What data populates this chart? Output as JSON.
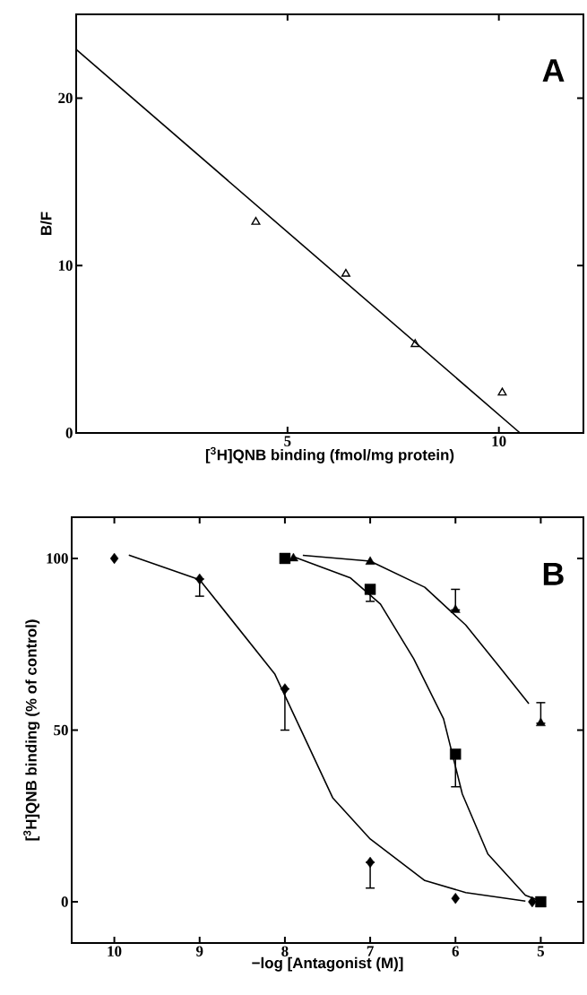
{
  "chart_data": [
    {
      "type": "scatter",
      "xlabel": "[$^{3}$H]QNB binding  (fmol/mg protein)",
      "ylabel": "B/F",
      "annotations": [
        "A"
      ],
      "marker": "triangle",
      "xlim": [
        0,
        12
      ],
      "ylim": [
        0,
        25
      ],
      "xticks": [
        5,
        10
      ],
      "yticks": [
        0,
        10,
        20
      ],
      "series": [
        {
          "color": "#000000",
          "x": [
            4.25,
            6.38,
            8.02,
            10.08
          ],
          "values": [
            12.6,
            9.5,
            5.3,
            2.4
          ]
        },
        {
          "type": "line",
          "marker": "none",
          "color": "#000000",
          "x": [
            0,
            10.5
          ],
          "values": [
            22.9,
            0
          ]
        }
      ]
    },
    {
      "type": "scatter",
      "xlabel": "−log [Antagonist (M)]",
      "ylabel": "[$^{3}$H]QNB binding (% of control)",
      "annotations": [
        "B"
      ],
      "xlim": [
        10.5,
        4.5
      ],
      "ylim": [
        -12,
        112
      ],
      "xticks": [
        10,
        9,
        8,
        7,
        6,
        5
      ],
      "yticks": [
        0,
        50,
        100
      ],
      "series": [
        {
          "marker": "diamond",
          "color": "#000000",
          "x": [
            10,
            9,
            8,
            7,
            6,
            5.1
          ],
          "values": [
            100,
            94,
            62,
            11.5,
            1,
            0
          ],
          "errors": [
            null,
            [
              89,
              94
            ],
            [
              50,
              62
            ],
            [
              4,
              11.5
            ],
            null,
            null
          ]
        },
        {
          "marker": "square",
          "color": "#000000",
          "x": [
            8,
            7,
            6,
            5
          ],
          "values": [
            100,
            91,
            43,
            0
          ],
          "errors": [
            null,
            [
              87.5,
              91
            ],
            [
              33.5,
              43
            ],
            null
          ]
        },
        {
          "marker": "triangle",
          "color": "#000000",
          "x": [
            7.9,
            7,
            6,
            5
          ],
          "values": [
            100,
            99,
            85,
            52
          ],
          "errors": [
            null,
            null,
            [
              85,
              91
            ],
            [
              52,
              58
            ]
          ]
        },
        {
          "type": "line",
          "marker": "none",
          "color": "#000000",
          "x": [
            9.83,
            9.0,
            8.12,
            7.79,
            7.44,
            7.0,
            6.36,
            5.88,
            5.18
          ],
          "values": [
            101,
            93.8,
            66.4,
            48.9,
            30.3,
            18.3,
            6.2,
            2.7,
            0.2
          ]
        },
        {
          "type": "line",
          "marker": "none",
          "color": "#000000",
          "x": [
            7.88,
            7.23,
            6.88,
            6.49,
            6.14,
            5.92,
            5.62,
            5.18,
            5.0
          ],
          "values": [
            100.3,
            94.3,
            86.7,
            70.8,
            53.3,
            31.4,
            13.9,
            1.9,
            0.2
          ]
        },
        {
          "type": "line",
          "marker": "none",
          "color": "#000000",
          "x": [
            7.79,
            7.0,
            6.36,
            5.88,
            5.49,
            5.14
          ],
          "values": [
            100.9,
            99.2,
            91.6,
            80.6,
            68.6,
            57.7
          ]
        }
      ]
    }
  ]
}
